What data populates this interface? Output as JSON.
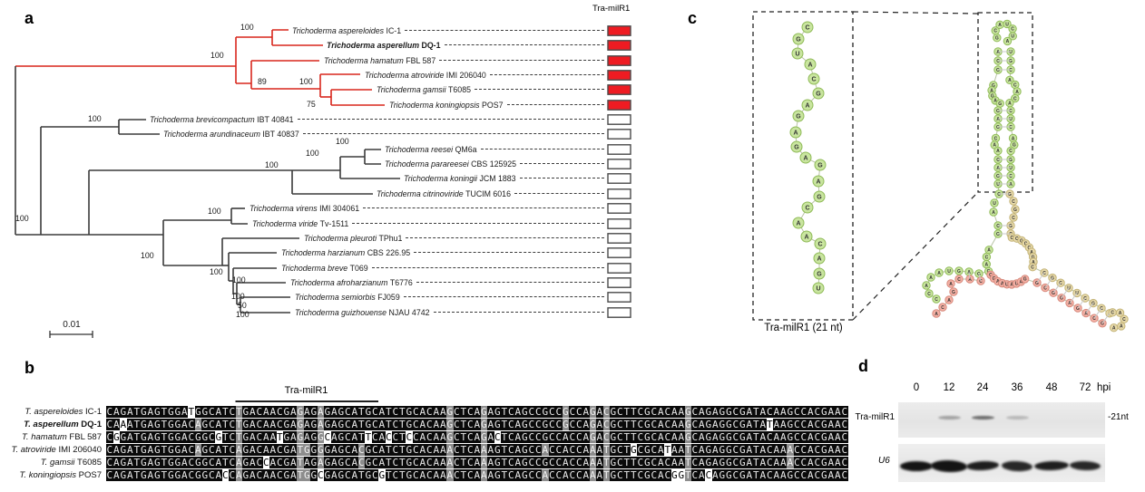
{
  "panels": {
    "a": "a",
    "b": "b",
    "c": "c",
    "d": "d"
  },
  "tree": {
    "column_header": "Tra-milR1",
    "scale_label": "0.01",
    "bootstraps": [
      "100",
      "100",
      "89",
      "100",
      "75",
      "100",
      "100",
      "100",
      "100",
      "100",
      "100",
      "100",
      "100",
      "100",
      "100",
      "50",
      "100"
    ],
    "species": [
      {
        "name": "Trichoderma aspereloides",
        "strain": "IC-1",
        "bold": false,
        "box": "red"
      },
      {
        "name": "Trichoderma asperellum",
        "strain": "DQ-1",
        "bold": true,
        "box": "red"
      },
      {
        "name": "Trichoderma hamatum",
        "strain": "FBL 587",
        "bold": false,
        "box": "red"
      },
      {
        "name": "Trichoderma atroviride",
        "strain": "IMI 206040",
        "bold": false,
        "box": "red"
      },
      {
        "name": "Trichoderma gamsii",
        "strain": "T6085",
        "bold": false,
        "box": "red"
      },
      {
        "name": "Trichoderma koningiopsis",
        "strain": "POS7",
        "bold": false,
        "box": "red"
      },
      {
        "name": "Trichoderma brevicompactum",
        "strain": "IBT 40841",
        "bold": false,
        "box": "white"
      },
      {
        "name": "Trichoderma arundinaceum",
        "strain": "IBT 40837",
        "bold": false,
        "box": "white"
      },
      {
        "name": "Trichoderma reesei",
        "strain": "QM6a",
        "bold": false,
        "box": "white"
      },
      {
        "name": "Trichoderma parareesei",
        "strain": "CBS 125925",
        "bold": false,
        "box": "white"
      },
      {
        "name": "Trichoderma koningii",
        "strain": "JCM 1883",
        "bold": false,
        "box": "white"
      },
      {
        "name": "Trichoderma citrinoviride",
        "strain": "TUCIM 6016",
        "bold": false,
        "box": "white"
      },
      {
        "name": "Trichoderma virens",
        "strain": "IMI 304061",
        "bold": false,
        "box": "white"
      },
      {
        "name": "Trichoderma viride",
        "strain": "Tv-1511",
        "bold": false,
        "box": "white"
      },
      {
        "name": "Trichoderma pleuroti",
        "strain": "TPhu1",
        "bold": false,
        "box": "white"
      },
      {
        "name": "Trichoderma harzianum",
        "strain": "CBS 226.95",
        "bold": false,
        "box": "white"
      },
      {
        "name": "Trichoderma breve",
        "strain": "T069",
        "bold": false,
        "box": "white"
      },
      {
        "name": "Trichoderma afroharzianum",
        "strain": "T6776",
        "bold": false,
        "box": "white"
      },
      {
        "name": "Trichoderma semiorbis",
        "strain": "FJ059",
        "bold": false,
        "box": "white"
      },
      {
        "name": "Trichoderma guizhouense",
        "strain": "NJAU 4742",
        "bold": false,
        "box": "white"
      }
    ]
  },
  "alignment": {
    "region_label": "Tra-milR1",
    "rows": [
      {
        "species": "T. aspereloides",
        "strain": "IC-1",
        "bold": false,
        "seq": "CAGATGAGTGGATGGCATCTGACAACGAGAGAGAGCATGCATCTGCACAAGCTCAGAGTCAGCCGCCGCCAGACGCTTCGCACAAGCAGAGGCGATACAAGCCACGAAC"
      },
      {
        "species": "T. asperellum",
        "strain": "DQ-1",
        "bold": true,
        "seq": "CAAATGAGTGGACAGCATCTGACAACGAGAGAGAGCATGCATCTGCACAAGCTCAGAGTCAGCCGCCGCCAGACGCTTCGCACAAGCAGAGGCGATATAAGCCACGAAC"
      },
      {
        "species": "T. hamatum",
        "strain": "FBL 587",
        "bold": false,
        "seq": "CGGATGAGTGGACGGCGTCTGACAATGAGAGGCAGCATTCACCTCCACAAGCTCAGACTCAGCCGCCACCAGACGCTTCGCACAAGCAGAGGCGATACAAGCCACGAAC"
      },
      {
        "species": "T. atroviride",
        "strain": "IMI 206040",
        "bold": false,
        "seq": "CAGATGAGTGGACAGCATCAGACAACGATGGGGAGCACGCATCTGCACAAACTCAAAGTCAGCCACCACCAAATGCTGCGCATAATCAGAGGCGATACAAACCACGAAC"
      },
      {
        "species": "T. gamsii",
        "strain": "T6085",
        "bold": false,
        "seq": "CAGATGAGTGGACGGCATCAGACCACGATAGAGAGCACGCATCTGCACAAACTCAAAGTCAGCCGCCACCAAATGCTTCGCACAATCAGAGGCGATACAAACCACGAAC"
      },
      {
        "species": "T. koningiopsis",
        "strain": "POS7",
        "bold": false,
        "seq": "CAGATGAGTGGACGGCACCAGACAACGATGGCGAGCATGCGTCTGCACAAACTCAAAGTCAGCCACCACCAAATGCTTCGCACGGTCACAGGCGATACAAGCCACGAAC"
      }
    ]
  },
  "structure": {
    "caption": "Tra-milR1 (21 nt)",
    "mature": "CGUACGAGAGAGAGCAACAGU",
    "precursor": {
      "terminal_loop": "GCAUCUA",
      "stem1_left": "ACG",
      "stem1_right": "UGC",
      "loop2_left": "GAGAG",
      "loop2_right": "ACACA",
      "stem2_left": "GAG",
      "stem2_right": "CUC",
      "loop3_left": "CAA",
      "loop3_right": "AGC",
      "stem3_left": "CAGU",
      "stem3_right": "GUCA",
      "stem4_left": "C",
      "stem4_right": "G",
      "bulge_left": "UA",
      "bulge_right": "CGC",
      "stem5_left": "CG",
      "stem5_right": "GC",
      "multiloop_left": "ACAG",
      "multiloop_top": "CCGCCAGAC",
      "multiloop_bottom": "CGAAUAUAG",
      "left_arm_top": "GAGUA",
      "left_arm_loop": "AAC",
      "left_arm_tail": "C",
      "left_arm_inner": "CA",
      "red_tail": "CAGACA",
      "right_stem_top": "CGCUUCGCA",
      "right_stem_bottom": "GCGGAGACG",
      "terminal_loop2": "CACAA"
    }
  },
  "blot": {
    "timepoints": [
      "0",
      "12",
      "24",
      "36",
      "48",
      "72"
    ],
    "unit": "hpi",
    "row1_label": "Tra-milR1",
    "size_label": "-21nt",
    "row2_label": "U6",
    "row1_band_intensities": [
      0,
      0.45,
      0.8,
      0.3,
      0,
      0
    ],
    "row2_band_intensities": [
      1,
      1,
      0.95,
      0.9,
      0.95,
      0.9
    ]
  },
  "colors": {
    "highlight_red": "#ee1b22",
    "tree_red": "#d8261c",
    "tree_black": "#3b3b3b",
    "nt_green": "#c9e59f",
    "nt_green_stroke": "#8fba57",
    "nt_tan": "#e7d9a9",
    "nt_tan_stroke": "#c3b377",
    "nt_red": "#f4b0a4",
    "nt_red_stroke": "#d6897c"
  }
}
